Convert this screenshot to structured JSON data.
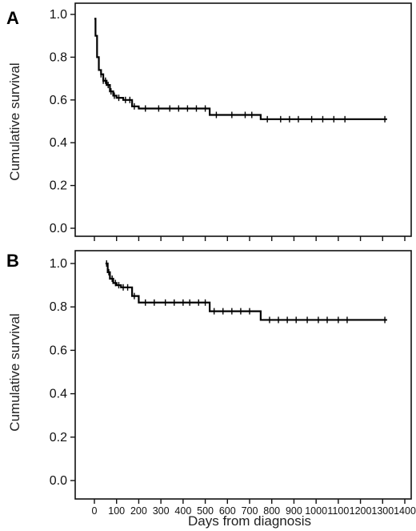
{
  "chart_data": [
    {
      "type": "line",
      "panel_label": "A",
      "ylabel": "Cumulative survival",
      "xlabel": "",
      "xlim": [
        0,
        1400
      ],
      "ylim": [
        0,
        1.0
      ],
      "yticks": [
        "0.0",
        "0.2",
        "0.4",
        "0.6",
        "0.8",
        "1.0"
      ],
      "xticks": [
        "0",
        "100",
        "200",
        "300",
        "400",
        "500",
        "600",
        "700",
        "800",
        "900",
        "1000",
        "1100",
        "1200",
        "1300",
        "1400"
      ],
      "xticks_shown": false,
      "grid": false,
      "series": [
        {
          "x": [
            0,
            5,
            12,
            20,
            30,
            40,
            55,
            70,
            85,
            100,
            130,
            170,
            200,
            520,
            750,
            1320
          ],
          "y": [
            0.98,
            0.9,
            0.8,
            0.74,
            0.72,
            0.69,
            0.67,
            0.64,
            0.62,
            0.61,
            0.6,
            0.57,
            0.56,
            0.53,
            0.51,
            0.51
          ],
          "censored_x": [
            30,
            40,
            50,
            62,
            75,
            90,
            110,
            140,
            160,
            180,
            230,
            290,
            340,
            380,
            420,
            460,
            500,
            550,
            620,
            680,
            710,
            780,
            840,
            880,
            920,
            980,
            1030,
            1080,
            1130,
            1310
          ]
        }
      ]
    },
    {
      "type": "line",
      "panel_label": "B",
      "ylabel": "Cumulative survival",
      "xlabel": "Days from diagnosis",
      "xlim": [
        0,
        1400
      ],
      "ylim": [
        0,
        1.0
      ],
      "yticks": [
        "0.0",
        "0.2",
        "0.4",
        "0.6",
        "0.8",
        "1.0"
      ],
      "xticks": [
        "0",
        "100",
        "200",
        "300",
        "400",
        "500",
        "600",
        "700",
        "800",
        "900",
        "1000",
        "1100",
        "1200",
        "1300",
        "1400"
      ],
      "xticks_shown": true,
      "grid": false,
      "series": [
        {
          "x": [
            50,
            60,
            70,
            85,
            100,
            120,
            170,
            200,
            520,
            750,
            1320
          ],
          "y": [
            1.0,
            0.96,
            0.93,
            0.91,
            0.9,
            0.89,
            0.85,
            0.82,
            0.78,
            0.74,
            0.74
          ],
          "censored_x": [
            55,
            65,
            80,
            95,
            110,
            130,
            150,
            180,
            230,
            270,
            320,
            360,
            400,
            430,
            470,
            500,
            540,
            580,
            620,
            660,
            700,
            790,
            830,
            870,
            910,
            960,
            1010,
            1050,
            1100,
            1140,
            1310
          ]
        }
      ]
    }
  ]
}
